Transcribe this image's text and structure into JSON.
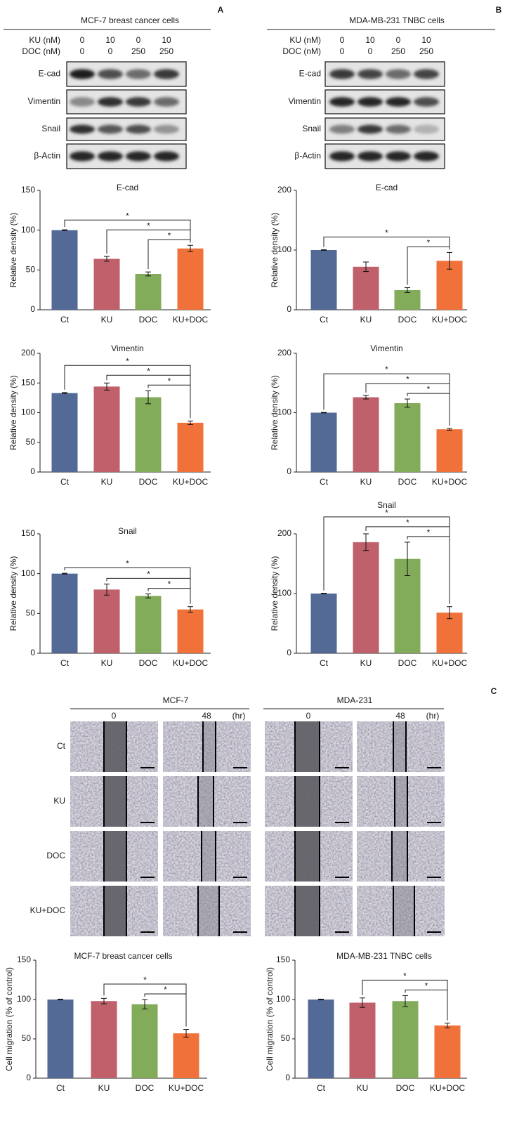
{
  "blots": [
    {
      "panel": "A",
      "title": "MCF-7 breast cancer cells",
      "conditions": [
        {
          "label": "KU (nM)",
          "values": [
            0,
            10,
            0,
            10
          ]
        },
        {
          "label": "DOC (nM)",
          "values": [
            0,
            0,
            250,
            250
          ]
        }
      ],
      "proteins": [
        "E-cad",
        "Vimentin",
        "Snail",
        "β-Actin"
      ]
    },
    {
      "panel": "B",
      "title": "MDA-MB-231 TNBC cells",
      "conditions": [
        {
          "label": "KU (nM)",
          "values": [
            0,
            10,
            0,
            10
          ]
        },
        {
          "label": "DOC (nM)",
          "values": [
            0,
            0,
            250,
            250
          ]
        }
      ],
      "proteins": [
        "E-cad",
        "Vimentin",
        "Snail",
        "β-Actin"
      ]
    }
  ],
  "migration": {
    "panel": "C",
    "lines": [
      {
        "name": "MCF-7",
        "times": [
          0,
          48
        ]
      },
      {
        "name": "MDA-231",
        "times": [
          0,
          48
        ]
      }
    ],
    "unit": "(hr)",
    "rows": [
      "Ct",
      "KU",
      "DOC",
      "KU+DOC"
    ]
  },
  "chart_data": [
    {
      "type": "bar",
      "title": "E-cad",
      "y_label": "Relative density (%)",
      "categories": [
        "Ct",
        "KU",
        "DOC",
        "KU+DOC"
      ],
      "values": [
        100,
        64,
        45,
        77
      ],
      "errors": [
        0.5,
        3,
        2.5,
        4
      ],
      "colors": [
        "#536a96",
        "#c0606a",
        "#82ab5a",
        "#f0723a"
      ],
      "ylim": [
        0,
        150
      ],
      "yticks": [
        0,
        50,
        100,
        150
      ],
      "significance": [
        {
          "between": [
            "Ct",
            "KU+DOC"
          ],
          "label": "*"
        },
        {
          "between": [
            "KU",
            "KU+DOC"
          ],
          "label": "*"
        },
        {
          "between": [
            "DOC",
            "KU+DOC"
          ],
          "label": "*"
        }
      ]
    },
    {
      "type": "bar",
      "title": "E-cad",
      "y_label": "Relative density (%)",
      "categories": [
        "Ct",
        "KU",
        "DOC",
        "KU+DOC"
      ],
      "values": [
        100,
        72,
        33,
        82
      ],
      "errors": [
        0.5,
        8,
        4,
        14
      ],
      "colors": [
        "#536a96",
        "#c0606a",
        "#82ab5a",
        "#f0723a"
      ],
      "ylim": [
        0,
        200
      ],
      "yticks": [
        0,
        100,
        200
      ],
      "significance": [
        {
          "between": [
            "Ct",
            "KU+DOC"
          ],
          "label": "*"
        },
        {
          "between": [
            "DOC",
            "KU+DOC"
          ],
          "label": "*"
        }
      ]
    },
    {
      "type": "bar",
      "title": "Vimentin",
      "y_label": "Relative density (%)",
      "categories": [
        "Ct",
        "KU",
        "DOC",
        "KU+DOC"
      ],
      "values": [
        133,
        144,
        126,
        83
      ],
      "errors": [
        1,
        6,
        11,
        3
      ],
      "colors": [
        "#536a96",
        "#c0606a",
        "#82ab5a",
        "#f0723a"
      ],
      "ylim": [
        0,
        200
      ],
      "yticks": [
        0,
        50,
        100,
        150,
        200
      ],
      "significance": [
        {
          "between": [
            "Ct",
            "KU+DOC"
          ],
          "label": "*"
        },
        {
          "between": [
            "KU",
            "KU+DOC"
          ],
          "label": "*"
        },
        {
          "between": [
            "DOC",
            "KU+DOC"
          ],
          "label": "*"
        }
      ]
    },
    {
      "type": "bar",
      "title": "Vimentin",
      "y_label": "Relative density (%)",
      "categories": [
        "Ct",
        "KU",
        "DOC",
        "KU+DOC"
      ],
      "values": [
        100,
        126,
        116,
        72
      ],
      "errors": [
        0.5,
        3,
        7,
        1.5
      ],
      "colors": [
        "#536a96",
        "#c0606a",
        "#82ab5a",
        "#f0723a"
      ],
      "ylim": [
        0,
        200
      ],
      "yticks": [
        0,
        100,
        200
      ],
      "significance": [
        {
          "between": [
            "Ct",
            "KU+DOC"
          ],
          "label": "*"
        },
        {
          "between": [
            "KU",
            "KU+DOC"
          ],
          "label": "*"
        },
        {
          "between": [
            "DOC",
            "KU+DOC"
          ],
          "label": "*"
        }
      ]
    },
    {
      "type": "bar",
      "title": "Snail",
      "y_label": "Relative density (%)",
      "categories": [
        "Ct",
        "KU",
        "DOC",
        "KU+DOC"
      ],
      "values": [
        100,
        80,
        72,
        55
      ],
      "errors": [
        0.5,
        7,
        2.5,
        3.5
      ],
      "colors": [
        "#536a96",
        "#c0606a",
        "#82ab5a",
        "#f0723a"
      ],
      "ylim": [
        0,
        150
      ],
      "yticks": [
        0,
        50,
        100,
        150
      ],
      "significance": [
        {
          "between": [
            "Ct",
            "KU+DOC"
          ],
          "label": "*"
        },
        {
          "between": [
            "KU",
            "KU+DOC"
          ],
          "label": "*"
        },
        {
          "between": [
            "DOC",
            "KU+DOC"
          ],
          "label": "*"
        }
      ]
    },
    {
      "type": "bar",
      "title": "Snail",
      "y_label": "Relative density (%)",
      "categories": [
        "Ct",
        "KU",
        "DOC",
        "KU+DOC"
      ],
      "values": [
        100,
        186,
        158,
        68
      ],
      "errors": [
        0.5,
        14,
        28,
        10
      ],
      "colors": [
        "#536a96",
        "#c0606a",
        "#82ab5a",
        "#f0723a"
      ],
      "ylim": [
        0,
        200
      ],
      "yticks": [
        0,
        100,
        200
      ],
      "significance": [
        {
          "between": [
            "Ct",
            "KU+DOC"
          ],
          "label": "*"
        },
        {
          "between": [
            "KU",
            "KU+DOC"
          ],
          "label": "*"
        },
        {
          "between": [
            "DOC",
            "KU+DOC"
          ],
          "label": "*"
        }
      ]
    },
    {
      "type": "bar",
      "title": "MCF-7 breast cancer cells",
      "y_label": "Cell migration (% of control)",
      "categories": [
        "Ct",
        "KU",
        "DOC",
        "KU+DOC"
      ],
      "values": [
        100,
        98,
        94,
        57
      ],
      "errors": [
        0.5,
        3.5,
        6,
        5
      ],
      "colors": [
        "#536a96",
        "#c0606a",
        "#82ab5a",
        "#f0723a"
      ],
      "ylim": [
        0,
        150
      ],
      "yticks": [
        0,
        50,
        100,
        150
      ],
      "significance": [
        {
          "between": [
            "KU",
            "KU+DOC"
          ],
          "label": "*"
        },
        {
          "between": [
            "DOC",
            "KU+DOC"
          ],
          "label": "*"
        }
      ]
    },
    {
      "type": "bar",
      "title": "MDA-MB-231 TNBC cells",
      "y_label": "Cell migration (% of control)",
      "categories": [
        "Ct",
        "KU",
        "DOC",
        "KU+DOC"
      ],
      "values": [
        100,
        96,
        98,
        67
      ],
      "errors": [
        0.5,
        6,
        7,
        3
      ],
      "colors": [
        "#536a96",
        "#c0606a",
        "#82ab5a",
        "#f0723a"
      ],
      "ylim": [
        0,
        150
      ],
      "yticks": [
        0,
        50,
        100,
        150
      ],
      "significance": [
        {
          "between": [
            "KU",
            "KU+DOC"
          ],
          "label": "*"
        },
        {
          "between": [
            "DOC",
            "KU+DOC"
          ],
          "label": "*"
        }
      ]
    }
  ]
}
